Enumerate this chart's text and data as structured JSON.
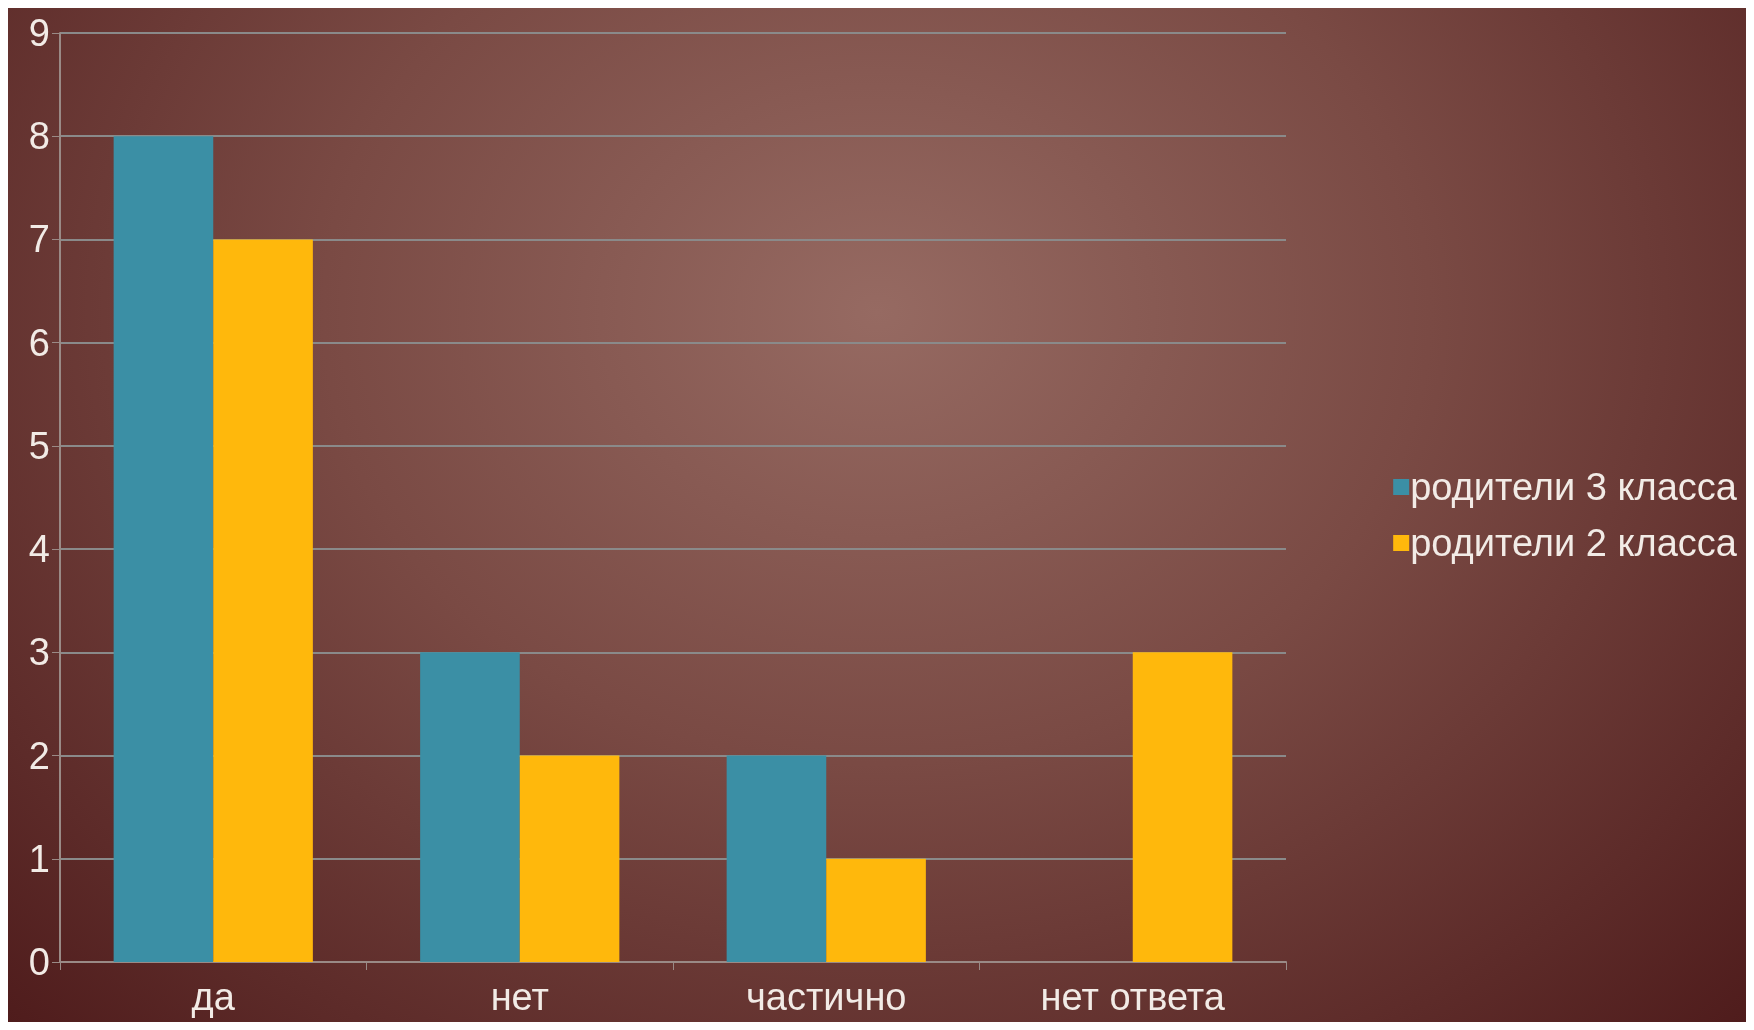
{
  "chart_data": {
    "type": "bar",
    "categories": [
      "да",
      "нет",
      "частично",
      "нет ответа"
    ],
    "series": [
      {
        "name": "родители 3 класса",
        "color": "#3b8fa5",
        "values": [
          8,
          3,
          2,
          0
        ]
      },
      {
        "name": "родители 2 класса",
        "color": "#ffb80c",
        "values": [
          7,
          2,
          1,
          3
        ]
      }
    ],
    "ylim": [
      0,
      9
    ],
    "yticks": [
      0,
      1,
      2,
      3,
      4,
      5,
      6,
      7,
      8,
      9
    ],
    "grid": "y",
    "legend": "right"
  }
}
